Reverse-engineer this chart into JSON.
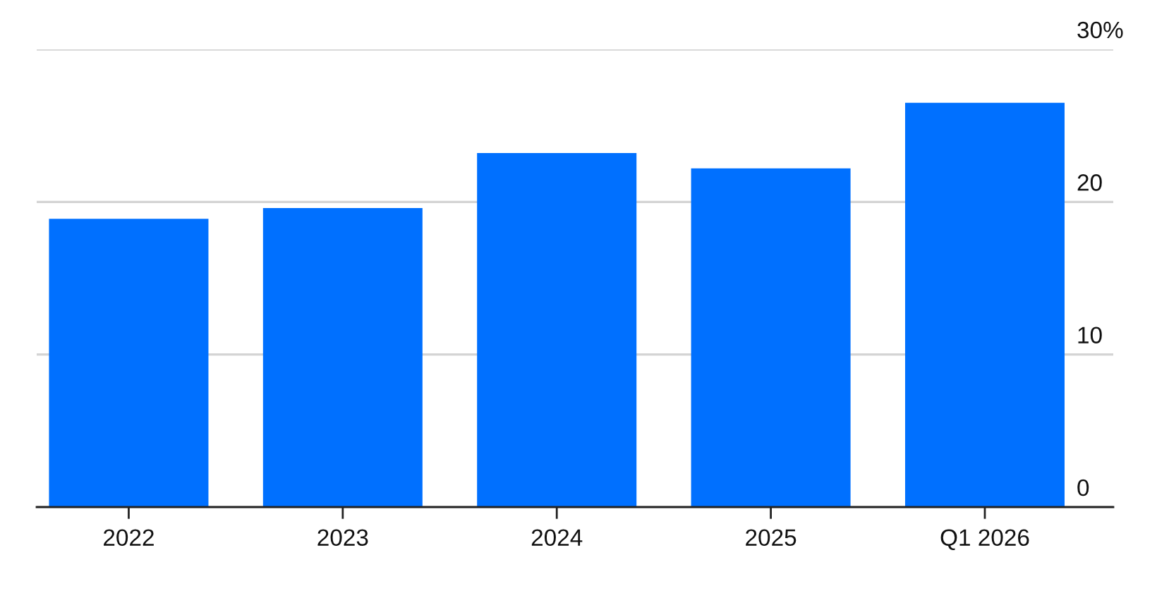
{
  "chart_data": {
    "type": "bar",
    "categories": [
      "2022",
      "2023",
      "2024",
      "2025",
      "Q1 2026"
    ],
    "values": [
      18.9,
      19.6,
      23.2,
      22.2,
      26.5
    ],
    "color": "#0070ff",
    "ylim": [
      0,
      30
    ],
    "yticks": [
      0,
      10,
      20,
      {
        "value": 30,
        "label": "30%"
      }
    ],
    "grid": "y"
  }
}
